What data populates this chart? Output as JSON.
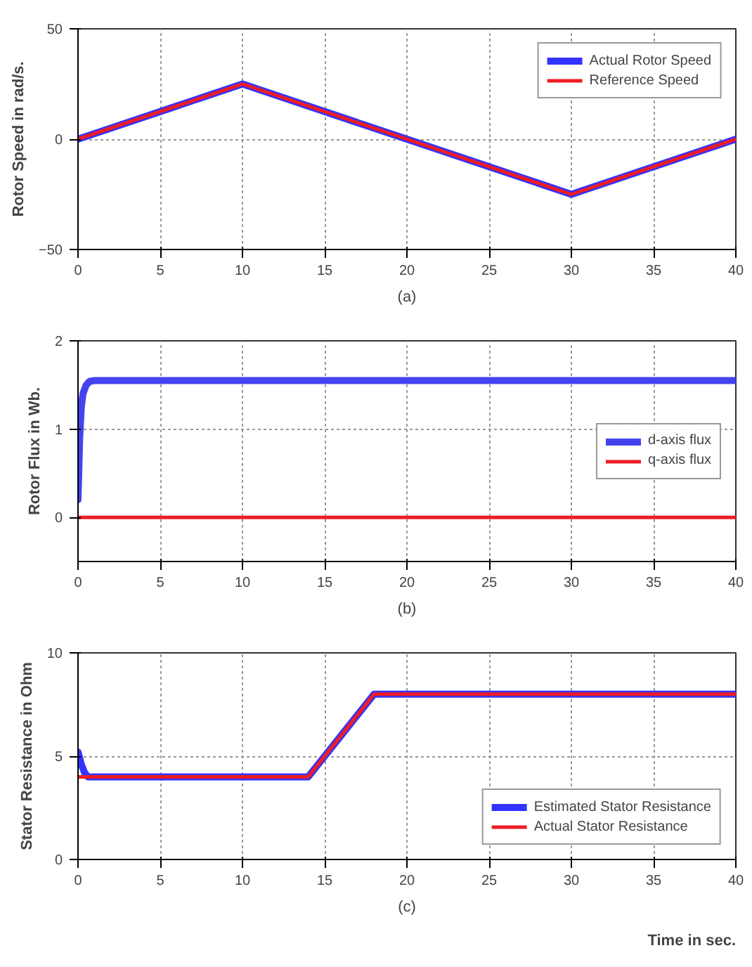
{
  "chart_data": [
    {
      "type": "line",
      "ylabel": "Rotor Speed in rad/s.",
      "annotations": [
        "(a)"
      ],
      "xlim": [
        0,
        40
      ],
      "ylim": [
        -50,
        50
      ],
      "xticks": [
        0,
        5,
        10,
        15,
        20,
        25,
        30,
        35,
        40
      ],
      "yticks": [
        -50,
        0,
        50
      ],
      "grid": true,
      "legend": "top right",
      "series": [
        {
          "name": "Actual Rotor Speed",
          "color": "#3333ff",
          "x": [
            0,
            10,
            20,
            30,
            40
          ],
          "values": [
            0,
            25,
            0,
            -25,
            0
          ]
        },
        {
          "name": "Reference Speed",
          "color": "#ee1c24",
          "x": [
            0,
            10,
            20,
            30,
            40
          ],
          "values": [
            0,
            25,
            0,
            -25,
            0
          ]
        }
      ]
    },
    {
      "type": "line",
      "ylabel": "Rotor Flux in Wb.",
      "annotations": [
        "(b)"
      ],
      "xlim": [
        0,
        40
      ],
      "ylim": [
        -0.5,
        2
      ],
      "xticks": [
        0,
        5,
        10,
        15,
        20,
        25,
        30,
        35,
        40
      ],
      "yticks": [
        0,
        1,
        2
      ],
      "grid": true,
      "legend": "right",
      "series": [
        {
          "name": "d-axis flux",
          "color": "#4444ee",
          "x": [
            0,
            0.1,
            0.2,
            0.3,
            0.5,
            0.7,
            1,
            40
          ],
          "values": [
            0.2,
            0.9,
            1.25,
            1.4,
            1.5,
            1.54,
            1.55,
            1.55
          ]
        },
        {
          "name": "q-axis flux",
          "color": "#ee1c24",
          "x": [
            0,
            40
          ],
          "values": [
            0,
            0
          ]
        }
      ]
    },
    {
      "type": "line",
      "ylabel": "Stator Resistance in Ohm",
      "xlabel": "Time in sec.",
      "annotations": [
        "(c)"
      ],
      "xlim": [
        0,
        40
      ],
      "ylim": [
        0,
        10
      ],
      "xticks": [
        0,
        5,
        10,
        15,
        20,
        25,
        30,
        35,
        40
      ],
      "yticks": [
        0,
        5,
        10
      ],
      "grid": true,
      "legend": "bottom right",
      "series": [
        {
          "name": "Estimated Stator Resistance",
          "color": "#3333ff",
          "x": [
            0,
            0.2,
            0.4,
            0.6,
            14,
            18,
            40
          ],
          "values": [
            5.2,
            4.6,
            4.2,
            4.0,
            4,
            8,
            8
          ]
        },
        {
          "name": "Actual Stator Resistance",
          "color": "#ee1c24",
          "x": [
            0,
            14,
            18,
            40
          ],
          "values": [
            4,
            4,
            8,
            8
          ]
        }
      ]
    }
  ]
}
